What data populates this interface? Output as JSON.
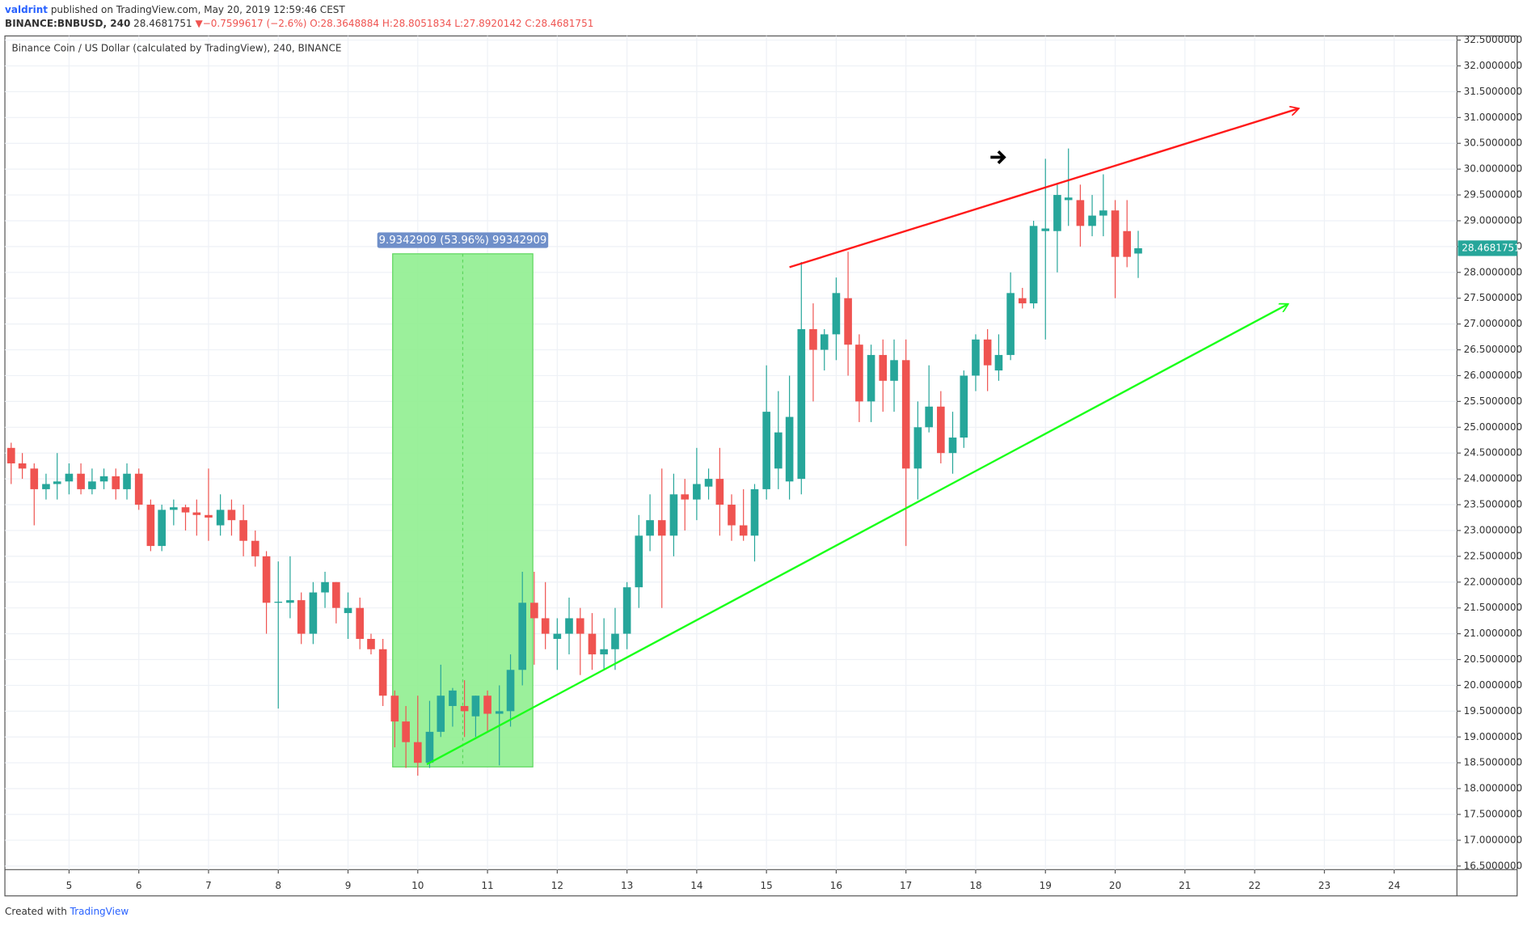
{
  "header": {
    "author": "valdrint",
    "published": "published on TradingView.com, May 20, 2019 12:59:46 CEST",
    "symbol": "BINANCE:BNBUSD, 240",
    "price": "28.4681751",
    "direction": "▼",
    "change": "−0.7599617 (−2.6%)",
    "open": "O:28.3648884",
    "high": "H:28.8051834",
    "low": "L:27.8920142",
    "close": "C:28.4681751"
  },
  "footer": {
    "created": "Created with",
    "brand": "TradingView"
  },
  "chart_data": {
    "type": "candlestick",
    "title": "Binance Coin / US Dollar (calculated by TradingView), 240, BINANCE",
    "up_color": "#26a69a",
    "down_color": "#ef5350",
    "grid": true,
    "xlim": [
      4.08,
      24.9
    ],
    "xticks": [
      5,
      6,
      7,
      8,
      9,
      10,
      11,
      12,
      13,
      14,
      15,
      16,
      17,
      18,
      19,
      20,
      21,
      22,
      23,
      24
    ],
    "ylim": [
      16.43,
      32.58
    ],
    "yticks": [
      {
        "value": 16.5,
        "label": "16.5000000"
      },
      {
        "value": 17,
        "label": "17.0000000"
      },
      {
        "value": 17.5,
        "label": "17.5000000"
      },
      {
        "value": 18,
        "label": "18.0000000"
      },
      {
        "value": 18.5,
        "label": "18.5000000"
      },
      {
        "value": 19,
        "label": "19.0000000"
      },
      {
        "value": 19.5,
        "label": "19.5000000"
      },
      {
        "value": 20,
        "label": "20.0000000"
      },
      {
        "value": 20.5,
        "label": "20.5000000"
      },
      {
        "value": 21,
        "label": "21.0000000"
      },
      {
        "value": 21.5,
        "label": "21.5000000"
      },
      {
        "value": 22,
        "label": "22.0000000"
      },
      {
        "value": 22.5,
        "label": "22.5000000"
      },
      {
        "value": 23,
        "label": "23.0000000"
      },
      {
        "value": 23.5,
        "label": "23.5000000"
      },
      {
        "value": 24,
        "label": "24.0000000"
      },
      {
        "value": 24.5,
        "label": "24.5000000"
      },
      {
        "value": 25,
        "label": "25.0000000"
      },
      {
        "value": 25.5,
        "label": "25.5000000"
      },
      {
        "value": 26,
        "label": "26.0000000"
      },
      {
        "value": 26.5,
        "label": "26.5000000"
      },
      {
        "value": 27,
        "label": "27.0000000"
      },
      {
        "value": 27.5,
        "label": "27.5000000"
      },
      {
        "value": 28,
        "label": "28.0000000"
      },
      {
        "value": 28.5,
        "label": "28.5000000"
      },
      {
        "value": 29,
        "label": "29.0000000"
      },
      {
        "value": 29.5,
        "label": "29.5000000"
      },
      {
        "value": 30,
        "label": "30.0000000"
      },
      {
        "value": 30.5,
        "label": "30.5000000"
      },
      {
        "value": 31,
        "label": "31.0000000"
      },
      {
        "value": 31.5,
        "label": "31.5000000"
      },
      {
        "value": 32,
        "label": "32.0000000"
      },
      {
        "value": 32.5,
        "label": "32.5000000"
      }
    ],
    "x": [
      4.17,
      4.33,
      4.5,
      4.67,
      4.83,
      5,
      5.17,
      5.33,
      5.5,
      5.67,
      5.83,
      6,
      6.17,
      6.33,
      6.5,
      6.67,
      6.83,
      7,
      7.17,
      7.33,
      7.5,
      7.67,
      7.83,
      8,
      8.17,
      8.33,
      8.5,
      8.67,
      8.83,
      9,
      9.17,
      9.33,
      9.5,
      9.67,
      9.83,
      10,
      10.17,
      10.33,
      10.5,
      10.67,
      10.83,
      11,
      11.17,
      11.33,
      11.5,
      11.67,
      11.83,
      12,
      12.17,
      12.33,
      12.5,
      12.67,
      12.83,
      13,
      13.17,
      13.33,
      13.5,
      13.67,
      13.83,
      14,
      14.17,
      14.33,
      14.5,
      14.67,
      14.83,
      15,
      15.17,
      15.33,
      15.5,
      15.67,
      15.83,
      16,
      16.17,
      16.33,
      16.5,
      16.67,
      16.83,
      17,
      17.17,
      17.33,
      17.5,
      17.67,
      17.83,
      18,
      18.17,
      18.33,
      18.5,
      18.67,
      18.83,
      19,
      19.17,
      19.33,
      19.5,
      19.67,
      19.83,
      20,
      20.17,
      20.33
    ],
    "open": [
      24.6,
      24.3,
      24.2,
      23.8,
      23.9,
      23.95,
      24.1,
      23.8,
      23.95,
      24.05,
      23.8,
      24.1,
      23.5,
      22.7,
      23.4,
      23.45,
      23.35,
      23.3,
      23.1,
      23.4,
      23.2,
      22.8,
      22.5,
      21.6,
      21.6,
      21.65,
      21.0,
      21.8,
      22.0,
      21.4,
      21.5,
      20.9,
      20.7,
      19.8,
      19.3,
      18.9,
      18.5,
      19.1,
      19.6,
      19.6,
      19.4,
      19.8,
      19.45,
      19.5,
      20.3,
      21.6,
      21.3,
      20.9,
      21.0,
      21.3,
      21.0,
      20.6,
      20.7,
      21.0,
      21.9,
      22.9,
      23.2,
      22.9,
      23.7,
      23.6,
      23.85,
      24.0,
      23.5,
      23.1,
      22.9,
      23.8,
      24.2,
      23.95,
      24.0,
      26.9,
      26.5,
      26.8,
      27.5,
      26.6,
      25.5,
      26.4,
      25.9,
      26.3,
      24.2,
      25.0,
      25.4,
      24.5,
      24.8,
      26.0,
      26.7,
      26.1,
      26.4,
      27.5,
      27.4,
      28.8,
      28.8,
      29.4,
      29.4,
      28.9,
      29.1,
      29.2,
      28.8,
      28.3648884
    ],
    "high": [
      24.7,
      24.5,
      24.3,
      24.1,
      24.5,
      24.3,
      24.3,
      24.2,
      24.2,
      24.2,
      24.3,
      24.2,
      23.6,
      23.5,
      23.6,
      23.5,
      23.6,
      24.2,
      23.7,
      23.6,
      23.5,
      23.0,
      22.6,
      22.4,
      22.5,
      21.8,
      22.0,
      22.2,
      22.0,
      21.8,
      21.7,
      21.0,
      20.9,
      19.9,
      19.6,
      19.8,
      19.7,
      20.4,
      19.95,
      20.1,
      19.8,
      19.9,
      20.0,
      20.6,
      22.2,
      22.2,
      22.0,
      21.3,
      21.7,
      21.5,
      21.4,
      21.3,
      21.5,
      22.0,
      23.3,
      23.7,
      24.2,
      24.1,
      24.0,
      24.6,
      24.2,
      24.6,
      23.7,
      23.8,
      23.9,
      26.2,
      25.7,
      26.0,
      28.2,
      27.4,
      26.9,
      27.9,
      28.4,
      26.8,
      26.6,
      26.7,
      26.7,
      26.7,
      25.5,
      26.2,
      25.7,
      25.3,
      26.1,
      26.8,
      26.9,
      26.8,
      28.0,
      27.7,
      29.0,
      30.2,
      29.7,
      30.4,
      29.7,
      29.5,
      29.9,
      29.4,
      29.4,
      28.8051834
    ],
    "low": [
      23.9,
      24.0,
      23.1,
      23.6,
      23.6,
      23.7,
      23.7,
      23.7,
      23.8,
      23.6,
      23.6,
      23.4,
      22.6,
      22.6,
      23.1,
      23.0,
      22.9,
      22.8,
      22.9,
      22.9,
      22.5,
      22.3,
      21.0,
      19.55,
      21.3,
      20.8,
      20.8,
      21.5,
      21.2,
      20.9,
      20.7,
      20.6,
      19.6,
      18.8,
      18.4,
      18.25,
      18.4,
      19.0,
      19.2,
      19.0,
      19.0,
      19.1,
      18.45,
      19.2,
      20.0,
      20.4,
      20.7,
      20.3,
      20.6,
      20.2,
      20.3,
      20.3,
      20.3,
      20.7,
      21.5,
      22.6,
      21.5,
      22.5,
      23.0,
      23.2,
      23.6,
      22.9,
      22.8,
      22.8,
      22.4,
      23.6,
      23.8,
      23.6,
      23.7,
      25.5,
      26.1,
      26.3,
      26.0,
      25.1,
      25.1,
      25.3,
      25.3,
      22.7,
      23.6,
      24.9,
      24.3,
      24.1,
      24.6,
      25.7,
      25.7,
      25.9,
      26.3,
      27.3,
      27.3,
      26.7,
      28.0,
      28.9,
      28.5,
      28.7,
      28.7,
      27.5,
      28.1,
      27.8920142
    ],
    "close": [
      24.3,
      24.2,
      23.8,
      23.9,
      23.95,
      24.1,
      23.8,
      23.95,
      24.05,
      23.8,
      24.1,
      23.5,
      22.7,
      23.4,
      23.45,
      23.35,
      23.3,
      23.25,
      23.4,
      23.2,
      22.8,
      22.5,
      21.6,
      21.62,
      21.65,
      21.0,
      21.8,
      22.0,
      21.5,
      21.5,
      20.9,
      20.7,
      19.8,
      19.3,
      18.9,
      18.5,
      19.1,
      19.8,
      19.9,
      19.5,
      19.8,
      19.45,
      19.5,
      20.3,
      21.6,
      21.3,
      21.0,
      21.0,
      21.3,
      21.0,
      20.6,
      20.7,
      21.0,
      21.9,
      22.9,
      23.2,
      22.9,
      23.7,
      23.6,
      23.9,
      24.0,
      23.5,
      23.1,
      22.9,
      23.8,
      25.3,
      24.9,
      25.2,
      26.9,
      26.5,
      26.8,
      27.6,
      26.6,
      25.5,
      26.4,
      25.9,
      26.3,
      24.2,
      25.0,
      25.4,
      24.5,
      24.8,
      26.0,
      26.7,
      26.2,
      26.4,
      27.6,
      27.4,
      28.9,
      28.85,
      29.5,
      29.45,
      28.9,
      29.1,
      29.2,
      28.3,
      28.3,
      28.4681751
    ],
    "annotations": {
      "range_box": {
        "x": [
          9.64,
          11.65
        ],
        "y": [
          18.42,
          28.36
        ],
        "color": "#90ee90",
        "label": "9.9342909 (53.96%) 99342909"
      },
      "trend_lines": [
        {
          "x": [
            15.33,
            22.62
          ],
          "y": [
            28.1,
            31.17
          ],
          "color": "#ff1a1a"
        },
        {
          "x": [
            10.13,
            22.47
          ],
          "y": [
            18.47,
            27.38
          ],
          "color": "#1aff1a"
        }
      ],
      "arrow": {
        "x": 18.31,
        "y": 30.23,
        "color": "#000000"
      }
    }
  }
}
